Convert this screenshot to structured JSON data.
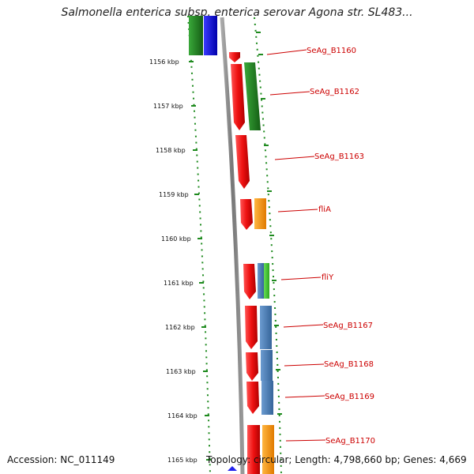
{
  "title": "Salmonella enterica subsp. enterica serovar Agona str. SL483...",
  "accession": "Accession: NC_011149",
  "topology": "Topology: circular; Length: 4,798,660 bp; Genes: 4,669",
  "scale_ticks": [
    "1156 kbp",
    "1157 kbp",
    "1158 kbp",
    "1159 kbp",
    "1160 kbp",
    "1161 kbp",
    "1162 kbp",
    "1163 kbp",
    "1164 kbp",
    "1165 kbp"
  ],
  "gene_labels": [
    "SeAg_B1160",
    "SeAg_B1162",
    "SeAg_B1163",
    "fliA",
    "fliY",
    "SeAg_B1167",
    "SeAg_B1168",
    "SeAg_B1169",
    "SeAg_B1170"
  ],
  "colors": {
    "cds": "#ee1111",
    "cog_green": "#1e8a1e",
    "cog_blue": "#1010dd",
    "cog_orange": "#ff9900",
    "cog_steel": "#4f81b8",
    "cog_lightgreen": "#44cc33",
    "backbone": "#888888",
    "dots": "#1e8a1e",
    "label": "#cc0000"
  }
}
